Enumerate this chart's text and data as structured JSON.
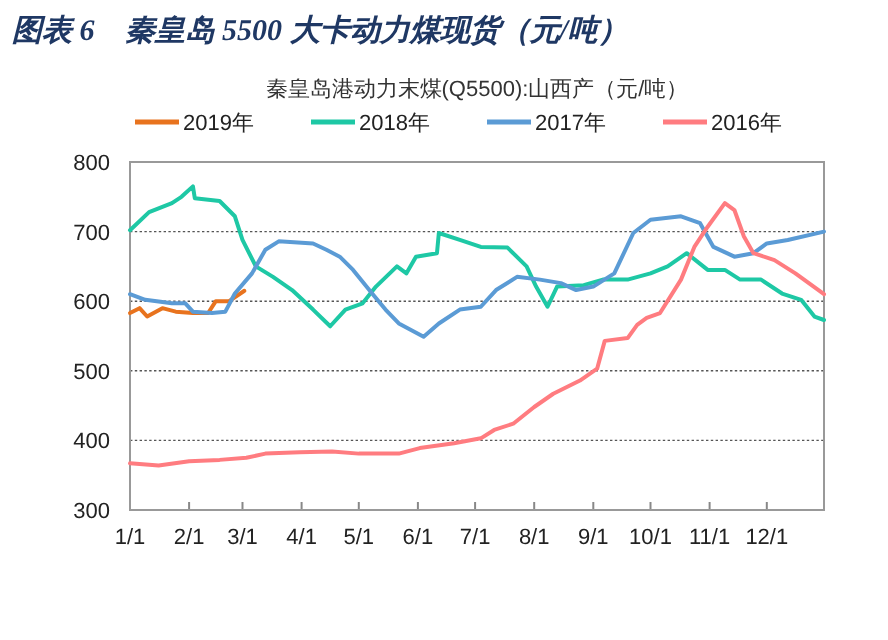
{
  "chart_data": {
    "type": "line",
    "title": "图表 6　秦皇岛 5500 大卡动力煤现货（元/吨）",
    "subtitle": "秦皇岛港动力末煤(Q5500):山西产（元/吨）",
    "xlim": [
      "--01-01",
      "--12-31"
    ],
    "xticks": [
      {
        "value": "--01-01",
        "label": "1/1"
      },
      {
        "value": "--02-01",
        "label": "2/1"
      },
      {
        "value": "--03-01",
        "label": "3/1"
      },
      {
        "value": "--04-01",
        "label": "4/1"
      },
      {
        "value": "--05-01",
        "label": "5/1"
      },
      {
        "value": "--06-01",
        "label": "6/1"
      },
      {
        "value": "--07-01",
        "label": "7/1"
      },
      {
        "value": "--08-01",
        "label": "8/1"
      },
      {
        "value": "--09-01",
        "label": "9/1"
      },
      {
        "value": "--10-01",
        "label": "10/1"
      },
      {
        "value": "--11-01",
        "label": "11/1"
      },
      {
        "value": "--12-01",
        "label": "12/1"
      }
    ],
    "ylim": [
      300,
      800
    ],
    "yticks": [
      300,
      400,
      500,
      600,
      700,
      800
    ],
    "grid": "y",
    "legend": "top",
    "series": [
      {
        "name": "2019年",
        "color": "#e8731e",
        "x": [
          "--01-01",
          "--01-06",
          "--01-10",
          "--01-18",
          "--01-25",
          "--02-03",
          "--02-11",
          "--02-15",
          "--02-22",
          "--03-02"
        ],
        "values": [
          583,
          590,
          578,
          590,
          585,
          583,
          583,
          600,
          600,
          615
        ]
      },
      {
        "name": "2018年",
        "color": "#1ec8a5",
        "x": [
          "--01-01",
          "--01-11",
          "--01-23",
          "--01-28",
          "--02-03",
          "--02-04",
          "--02-17",
          "--02-25",
          "--03-01",
          "--03-08",
          "--03-17",
          "--03-27",
          "--04-07",
          "--04-16",
          "--04-24",
          "--05-03",
          "--05-10",
          "--05-21",
          "--05-26",
          "--05-31",
          "--06-11",
          "--06-12",
          "--06-23",
          "--07-04",
          "--07-18",
          "--07-28",
          "--08-02",
          "--08-08",
          "--08-13",
          "--08-27",
          "--09-06",
          "--09-19",
          "--10-01",
          "--10-10",
          "--10-20",
          "--10-31",
          "--11-09",
          "--11-17",
          "--11-28",
          "--12-09",
          "--12-19",
          "--12-26",
          "--12-31"
        ],
        "values": [
          702,
          728,
          741,
          750,
          765,
          748,
          744,
          722,
          688,
          650,
          635,
          616,
          588,
          564,
          588,
          597,
          621,
          650,
          640,
          664,
          669,
          698,
          688,
          678,
          677,
          650,
          621,
          592,
          621,
          623,
          631,
          631,
          640,
          650,
          669,
          645,
          645,
          631,
          631,
          611,
          602,
          578,
          573
        ]
      },
      {
        "name": "2017年",
        "color": "#5b9bd5",
        "x": [
          "--01-01",
          "--01-09",
          "--01-23",
          "--01-30",
          "--02-03",
          "--02-13",
          "--02-20",
          "--02-25",
          "--03-06",
          "--03-13",
          "--03-20",
          "--04-07",
          "--04-14",
          "--04-21",
          "--04-28",
          "--05-08",
          "--05-15",
          "--05-22",
          "--06-04",
          "--06-12",
          "--06-23",
          "--07-04",
          "--07-12",
          "--07-23",
          "--08-04",
          "--08-15",
          "--08-23",
          "--09-01",
          "--09-12",
          "--09-22",
          "--10-01",
          "--10-17",
          "--10-27",
          "--11-03",
          "--11-14",
          "--11-24",
          "--12-01",
          "--12-12",
          "--12-31"
        ],
        "values": [
          610,
          602,
          597,
          597,
          585,
          583,
          585,
          611,
          640,
          674,
          686,
          683,
          674,
          664,
          645,
          611,
          588,
          568,
          549,
          568,
          588,
          592,
          616,
          635,
          631,
          626,
          616,
          621,
          640,
          698,
          717,
          722,
          712,
          678,
          664,
          669,
          683,
          688,
          700
        ]
      },
      {
        "name": "2016年",
        "color": "#ff7c80",
        "x": [
          "--01-01",
          "--01-16",
          "--02-01",
          "--02-17",
          "--03-03",
          "--03-13",
          "--03-31",
          "--04-17",
          "--05-01",
          "--05-22",
          "--06-02",
          "--06-20",
          "--07-04",
          "--07-11",
          "--07-21",
          "--08-01",
          "--08-11",
          "--08-25",
          "--09-03",
          "--09-07",
          "--09-19",
          "--09-24",
          "--09-29",
          "--10-06",
          "--10-17",
          "--10-24",
          "--10-31",
          "--11-09",
          "--11-14",
          "--11-19",
          "--11-24",
          "--12-05",
          "--12-16",
          "--12-31"
        ],
        "values": [
          367,
          364,
          370,
          372,
          375,
          381,
          383,
          384,
          381,
          381,
          389,
          396,
          403,
          415,
          424,
          448,
          467,
          486,
          503,
          543,
          547,
          566,
          576,
          583,
          631,
          678,
          707,
          741,
          731,
          693,
          669,
          659,
          640,
          610
        ]
      }
    ]
  }
}
